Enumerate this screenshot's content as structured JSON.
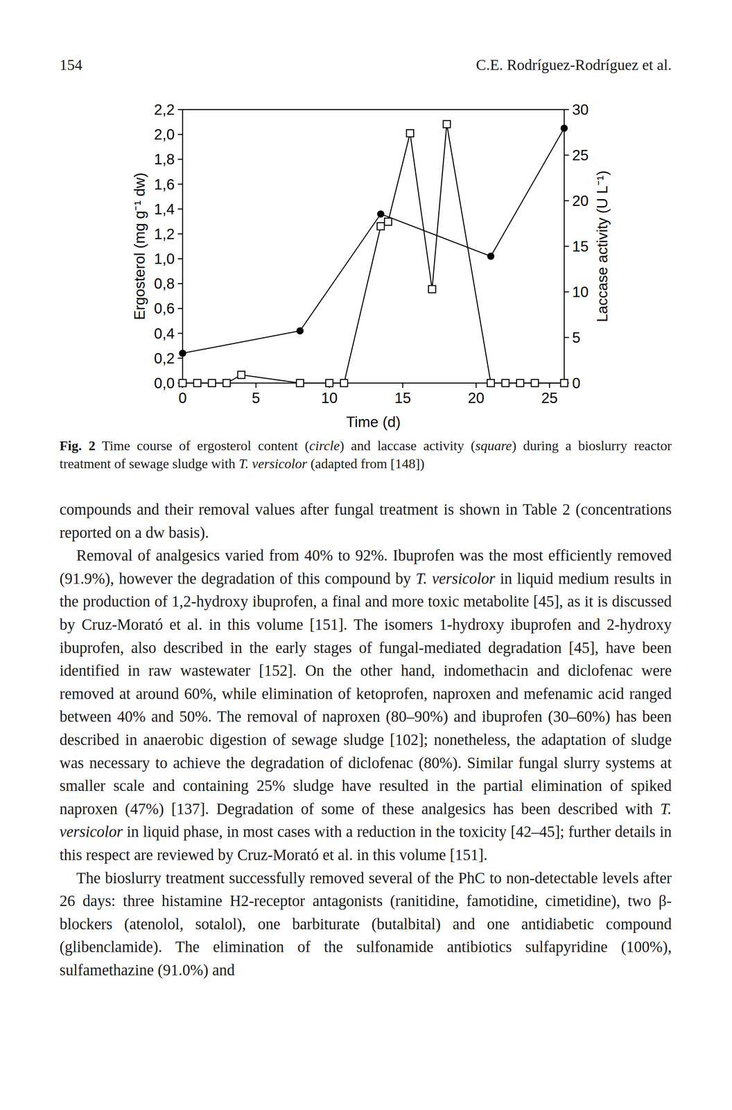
{
  "header": {
    "page": "154",
    "authors": "C.E. Rodríguez-Rodríguez et al."
  },
  "chart_data": {
    "type": "line",
    "x_label": "Time (d)",
    "y_label": "Ergosterol (mg g⁻¹ dw)",
    "y2_label": "Laccase activity (U L⁻¹)",
    "xlim": [
      0,
      26
    ],
    "xticks": [
      0,
      5,
      10,
      15,
      20,
      25
    ],
    "ylim": [
      0,
      2.2
    ],
    "yticks": [
      {
        "value": 0,
        "label": "0,0"
      },
      {
        "value": 0.2,
        "label": "0,2"
      },
      {
        "value": 0.4,
        "label": "0,4"
      },
      {
        "value": 0.6,
        "label": "0,6"
      },
      {
        "value": 0.8,
        "label": "0,8"
      },
      {
        "value": 1.0,
        "label": "1,0"
      },
      {
        "value": 1.2,
        "label": "1,2"
      },
      {
        "value": 1.4,
        "label": "1,4"
      },
      {
        "value": 1.6,
        "label": "1,6"
      },
      {
        "value": 1.8,
        "label": "1,8"
      },
      {
        "value": 2.0,
        "label": "2,0"
      },
      {
        "value": 2.2,
        "label": "2,2"
      }
    ],
    "y2lim": [
      0,
      30
    ],
    "y2ticks": [
      0,
      5,
      10,
      15,
      20,
      25,
      30
    ],
    "grid": false,
    "series": [
      {
        "color": "#000000",
        "marker": "circle",
        "line_style": "solid",
        "x": [
          0,
          8,
          13.5,
          21,
          26
        ],
        "values": [
          0.24,
          0.42,
          1.36,
          1.02,
          2.05
        ]
      },
      {
        "color": "#000000",
        "marker": "square",
        "line_style": "solid",
        "axis": "y2",
        "x": [
          0,
          1,
          2,
          3,
          4,
          8,
          10,
          11,
          13.5,
          14,
          15.5,
          17,
          18,
          21,
          22,
          23,
          24,
          26
        ],
        "values": [
          0,
          0,
          0,
          0,
          0.9,
          0,
          0,
          0,
          17.2,
          17.7,
          27.4,
          10.3,
          28.4,
          0,
          0,
          0,
          0,
          0
        ]
      }
    ]
  },
  "caption": [
    {
      "t": "Fig. 2",
      "b": true
    },
    {
      "t": " Time course of ergosterol content ("
    },
    {
      "t": "circle",
      "i": true
    },
    {
      "t": ") and laccase activity ("
    },
    {
      "t": "square",
      "i": true
    },
    {
      "t": ") during a bioslurry reactor treatment of sewage sludge with "
    },
    {
      "t": "T. versicolor",
      "i": true
    },
    {
      "t": " (adapted from [148])"
    }
  ],
  "paragraphs": [
    {
      "indent": false,
      "runs": [
        {
          "t": "compounds and their removal values after fungal treatment is shown in Table 2 (concentrations reported on a dw basis)."
        }
      ]
    },
    {
      "indent": true,
      "runs": [
        {
          "t": "Removal of analgesics varied from 40% to 92%. Ibuprofen was the most efficiently removed (91.9%), however the degradation of this compound by "
        },
        {
          "t": "T. versicolor",
          "i": true
        },
        {
          "t": " in liquid medium results in the production of 1,2-hydroxy ibuprofen, a final and more toxic metabolite [45], as it is discussed by Cruz-Morató et al. in this volume [151]. The isomers 1-hydroxy ibuprofen and 2-hydroxy ibuprofen, also described in the early stages of fungal-mediated degradation [45], have been identified in raw wastewater [152]. On the other hand, indomethacin and diclofenac were removed at around 60%, while elimination of ketoprofen, naproxen and mefenamic acid ranged between 40% and 50%. The removal of naproxen (80–90%) and ibuprofen (30–60%) has been described in anaerobic digestion of sewage sludge [102]; nonetheless, the adaptation of sludge was necessary to achieve the degradation of diclofenac (80%). Similar fungal slurry systems at smaller scale and containing 25% sludge have resulted in the partial elimination of spiked naproxen (47%) [137]. Degradation of some of these analgesics has been described with "
        },
        {
          "t": "T. versicolor",
          "i": true
        },
        {
          "t": " in liquid phase, in most cases with a reduction in the toxicity [42–45]; further details in this respect are reviewed by Cruz-Morató et al. in this volume [151]."
        }
      ]
    },
    {
      "indent": true,
      "runs": [
        {
          "t": "The bioslurry treatment successfully removed several of the PhC to non-detectable levels after 26 days: three histamine H2-receptor antagonists (ranitidine, famotidine, cimetidine), two β-blockers (atenolol, sotalol), one barbiturate (butalbital) and one antidiabetic compound (glibenclamide). The elimination of the sulfonamide antibiotics sulfapyridine (100%), sulfamethazine (91.0%) and"
        }
      ]
    }
  ]
}
